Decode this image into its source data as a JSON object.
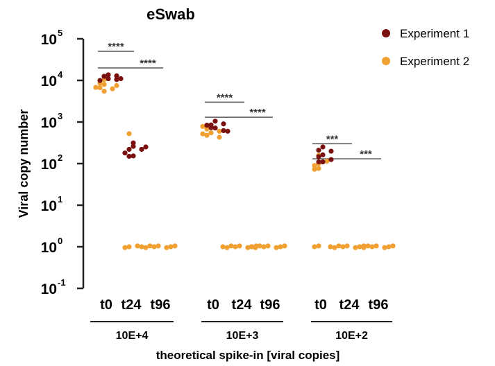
{
  "chart_data": {
    "type": "scatter",
    "title": "eSwab",
    "ylabel": "Viral copy number",
    "xlabel": "theoretical spike-in [viral copies]",
    "yscale": "log",
    "ylim": [
      0.1,
      100000
    ],
    "yticks": [
      {
        "base": "10",
        "exp": "5"
      },
      {
        "base": "10",
        "exp": "4"
      },
      {
        "base": "10",
        "exp": "3"
      },
      {
        "base": "10",
        "exp": "2"
      },
      {
        "base": "10",
        "exp": "1"
      },
      {
        "base": "10",
        "exp": "0"
      },
      {
        "base": "10",
        "exp": "-1"
      }
    ],
    "groups": [
      {
        "label": "10E+4",
        "categories": [
          "t0",
          "t24",
          "t96"
        ]
      },
      {
        "label": "10E+3",
        "categories": [
          "t0",
          "t24",
          "t96"
        ]
      },
      {
        "label": "10E+2",
        "categories": [
          "t0",
          "t24",
          "t96"
        ]
      }
    ],
    "legend_position": "top-right",
    "series": [
      {
        "name": "Experiment 1",
        "color": "#7a1010",
        "points": [
          {
            "group": "10E+4",
            "category": "t0",
            "values": [
              13000,
              12500,
              11500,
              12000,
              10500,
              13500,
              9500,
              11000
            ]
          },
          {
            "group": "10E+4",
            "category": "t24",
            "values": [
              300,
              260,
              230,
              210,
              180,
              160,
              240,
              150
            ]
          },
          {
            "group": "10E+4",
            "category": "t96",
            "values": []
          },
          {
            "group": "10E+3",
            "category": "t0",
            "values": [
              1000,
              850,
              750,
              700,
              900,
              650,
              800,
              600
            ]
          },
          {
            "group": "10E+3",
            "category": "t24",
            "values": []
          },
          {
            "group": "10E+3",
            "category": "t96",
            "values": []
          },
          {
            "group": "10E+2",
            "category": "t0",
            "values": [
              240,
              210,
              170,
              140,
              125,
              115,
              190,
              110
            ]
          },
          {
            "group": "10E+2",
            "category": "t24",
            "values": []
          },
          {
            "group": "10E+2",
            "category": "t96",
            "values": []
          }
        ]
      },
      {
        "name": "Experiment 2",
        "color": "#f0a030",
        "points": [
          {
            "group": "10E+4",
            "category": "t0",
            "values": [
              10000,
              8000,
              7000,
              6000,
              5500,
              9000,
              6500,
              7500
            ]
          },
          {
            "group": "10E+4",
            "category": "t24",
            "values": [
              500,
              1,
              1,
              1
            ]
          },
          {
            "group": "10E+4",
            "category": "t96",
            "values": [
              1,
              1,
              1,
              1,
              1,
              1,
              1,
              1
            ]
          },
          {
            "group": "10E+3",
            "category": "t0",
            "values": [
              700,
              550,
              500,
              650,
              600,
              450,
              750,
              520
            ]
          },
          {
            "group": "10E+3",
            "category": "t24",
            "values": [
              1,
              1,
              1,
              1,
              1,
              1,
              1,
              1
            ]
          },
          {
            "group": "10E+3",
            "category": "t96",
            "values": [
              1,
              1,
              1,
              1,
              1,
              1,
              1,
              1
            ]
          },
          {
            "group": "10E+2",
            "category": "t0",
            "values": [
              150,
              100,
              80,
              70,
              90,
              120,
              1,
              1
            ]
          },
          {
            "group": "10E+2",
            "category": "t24",
            "values": [
              1,
              1,
              1,
              1,
              1,
              1,
              1,
              1
            ]
          },
          {
            "group": "10E+2",
            "category": "t96",
            "values": [
              1,
              1,
              1,
              1,
              1,
              1,
              1,
              1
            ]
          }
        ]
      }
    ],
    "significance": [
      {
        "group": "10E+4",
        "from": "t0",
        "to": "t24",
        "label": "****",
        "y": 50000
      },
      {
        "group": "10E+4",
        "from": "t0",
        "to": "t96",
        "label": "****",
        "y": 20000
      },
      {
        "group": "10E+3",
        "from": "t0",
        "to": "t24",
        "label": "****",
        "y": 3000
      },
      {
        "group": "10E+3",
        "from": "t0",
        "to": "t96",
        "label": "****",
        "y": 1300
      },
      {
        "group": "10E+2",
        "from": "t0",
        "to": "t24",
        "label": "***",
        "y": 300
      },
      {
        "group": "10E+2",
        "from": "t0",
        "to": "t96",
        "label": "***",
        "y": 130
      }
    ]
  }
}
